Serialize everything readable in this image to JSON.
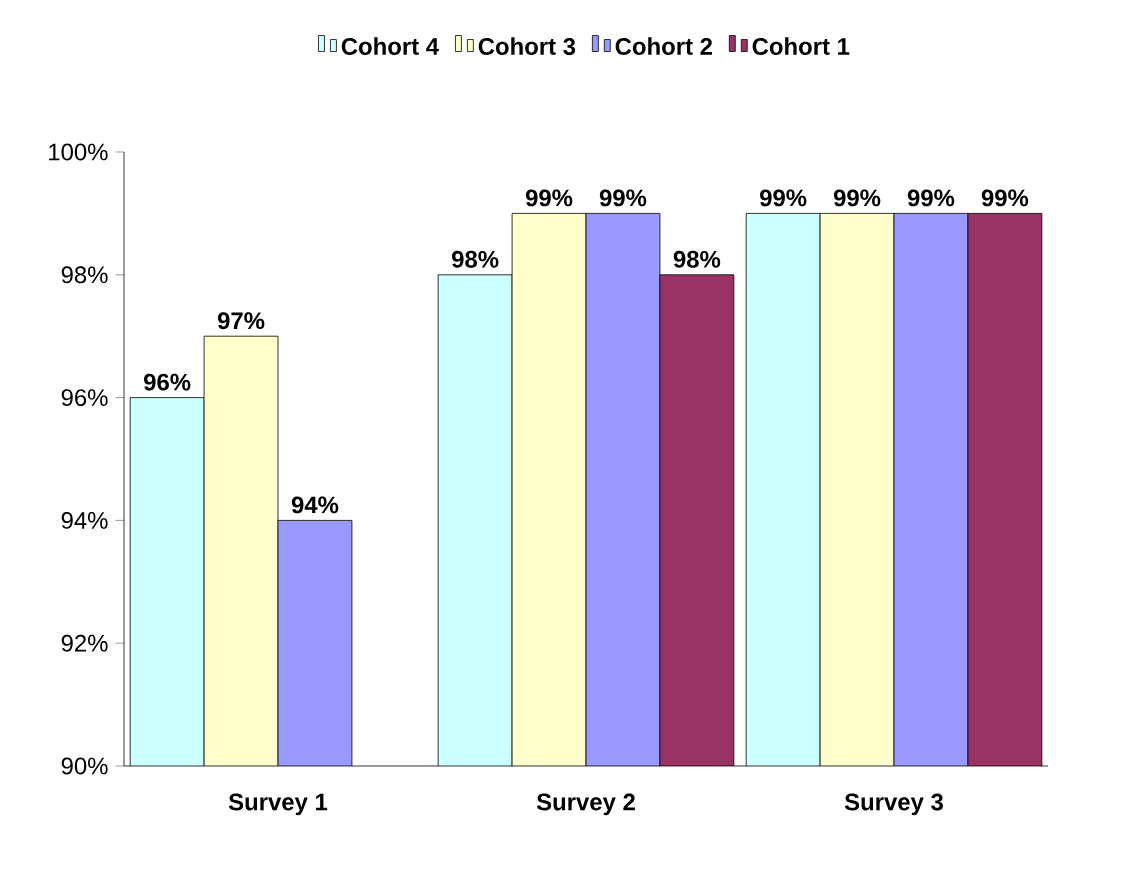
{
  "chart_data": {
    "type": "bar",
    "categories": [
      "Survey 1",
      "Survey 2",
      "Survey 3"
    ],
    "series": [
      {
        "name": "Cohort 4",
        "color": "#ccffff",
        "values": [
          96,
          98,
          99
        ],
        "value_labels": [
          "96%",
          "98%",
          "99%"
        ]
      },
      {
        "name": "Cohort 3",
        "color": "#ffffcc",
        "values": [
          97,
          99,
          99
        ],
        "value_labels": [
          "97%",
          "99%",
          "99%"
        ]
      },
      {
        "name": "Cohort 2",
        "color": "#9999ff",
        "values": [
          94,
          99,
          99
        ],
        "value_labels": [
          "94%",
          "99%",
          "99%"
        ]
      },
      {
        "name": "Cohort 1",
        "color": "#993366",
        "values": [
          null,
          98,
          99
        ],
        "value_labels": [
          null,
          "98%",
          "99%"
        ]
      }
    ],
    "ylim": [
      90,
      100
    ],
    "yticks": [
      {
        "value": 90,
        "label": "90%"
      },
      {
        "value": 92,
        "label": "92%"
      },
      {
        "value": 94,
        "label": "94%"
      },
      {
        "value": 96,
        "label": "96%"
      },
      {
        "value": 98,
        "label": "98%"
      },
      {
        "value": 100,
        "label": "100%"
      }
    ],
    "legend": "top",
    "grid": false
  }
}
